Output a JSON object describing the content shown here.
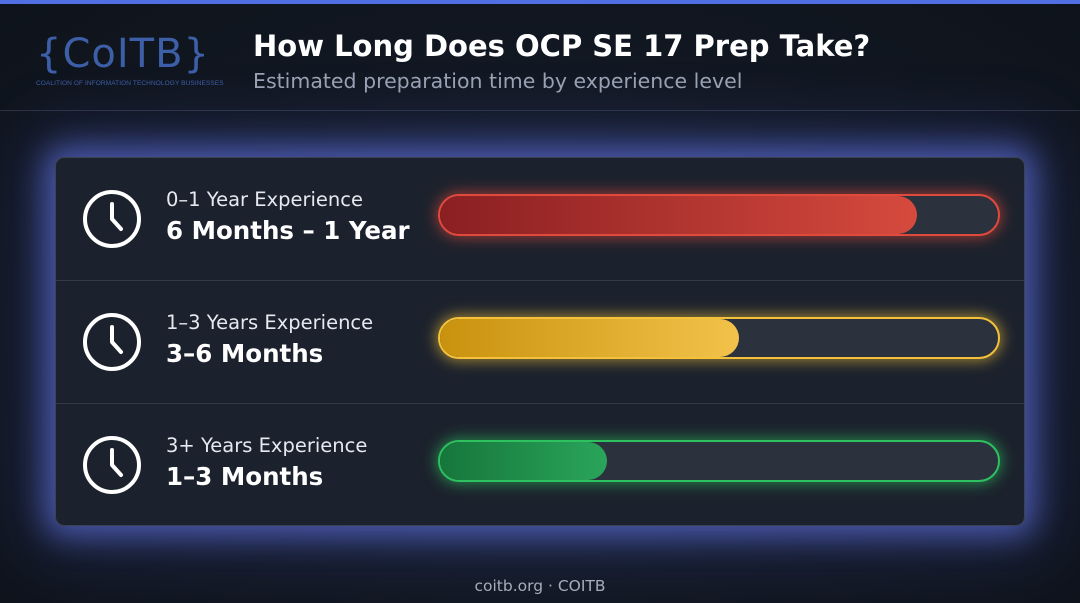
{
  "colors": {
    "top_accent": "#4f6fe3",
    "logo": "#3d5fa8",
    "panel_glow": "#6e82ff"
  },
  "logo": {
    "mark": "{CoITB}",
    "tagline": "COALITION OF INFORMATION TECHNOLOGY BUSINESSES"
  },
  "header": {
    "title": "How Long Does OCP SE 17 Prep Take?",
    "subtitle": "Estimated preparation time by experience level"
  },
  "rows": [
    {
      "icon": "clock-icon",
      "label": "0–1 Year Experience",
      "value": "6 Months – 1 Year",
      "fill_fraction": 0.855,
      "color": "#d64a3d",
      "color_dark": "#8a1f22",
      "glow": "#e04a3c"
    },
    {
      "icon": "clock-icon",
      "label": "1–3 Years Experience",
      "value": "3–6 Months",
      "fill_fraction": 0.535,
      "color": "#f2c24a",
      "color_dark": "#c9920e",
      "glow": "#f3c23a"
    },
    {
      "icon": "clock-icon",
      "label": "3+ Years Experience",
      "value": "1–3 Months",
      "fill_fraction": 0.3,
      "color": "#2aa55a",
      "color_dark": "#16763c",
      "glow": "#2ec160"
    }
  ],
  "footer": {
    "text": "coitb.org · COITB"
  }
}
